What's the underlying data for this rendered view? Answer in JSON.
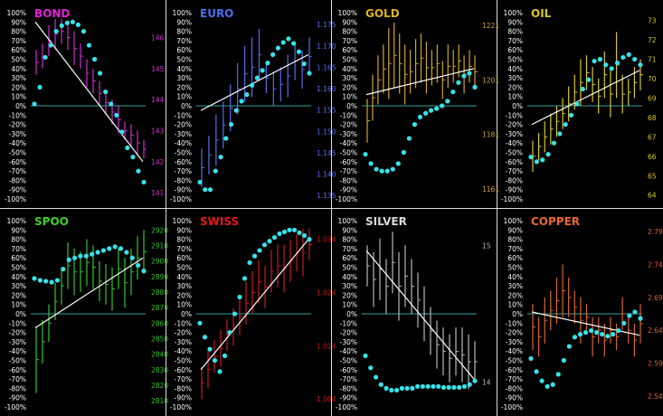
{
  "colors": {
    "background": "#000000",
    "zero_line": "#2aa3a3",
    "trend_line": "#ffffff",
    "markers": "#36e3ea",
    "left_axis_text": "#ffffff"
  },
  "chart_data": [
    {
      "type": "line",
      "title": "BOND",
      "title_color": "#e21fd6",
      "bar_color": "#d12bd0",
      "left_axis": {
        "ticks": [
          "100%",
          "90%",
          "80%",
          "70%",
          "60%",
          "50%",
          "40%",
          "30%",
          "20%",
          "10%",
          "0%",
          "-10%",
          "-20%",
          "-30%",
          "-40%",
          "-50%",
          "-60%",
          "-70%",
          "-80%",
          "-90%",
          "-100%"
        ],
        "ylim": [
          -100,
          100
        ]
      },
      "right_axis": {
        "ticks": [
          "146",
          "145",
          "144",
          "143",
          "142",
          "141"
        ],
        "ylim": [
          140.8,
          146.8
        ]
      },
      "bars": [
        [
          144.8,
          145.6
        ],
        [
          145.0,
          145.8
        ],
        [
          145.4,
          146.4
        ],
        [
          145.6,
          146.6
        ],
        [
          145.8,
          146.6
        ],
        [
          145.6,
          146.4
        ],
        [
          145.1,
          146.2
        ],
        [
          145.0,
          145.8
        ],
        [
          144.4,
          145.3
        ],
        [
          144.2,
          145.0
        ],
        [
          143.8,
          144.6
        ],
        [
          143.5,
          144.3
        ],
        [
          143.2,
          144.0
        ],
        [
          142.9,
          143.8
        ],
        [
          142.7,
          143.3
        ],
        [
          142.5,
          143.2
        ],
        [
          142.2,
          143.0
        ],
        [
          142.1,
          142.7
        ]
      ],
      "markers": [
        2,
        20,
        52,
        65,
        80,
        86,
        89,
        90,
        87,
        80,
        65,
        50,
        35,
        15,
        2,
        -10,
        -28,
        -45,
        -55,
        -70,
        -82
      ],
      "trend": [
        90,
        -60
      ]
    },
    {
      "type": "line",
      "title": "EURO",
      "title_color": "#4a6cf0",
      "bar_color": "#5b6ce8",
      "left_axis": {
        "ticks": [
          "100%",
          "90%",
          "80%",
          "70%",
          "60%",
          "50%",
          "40%",
          "30%",
          "20%",
          "10%",
          "0%",
          "-10%",
          "-20%",
          "-30%",
          "-40%",
          "-50%",
          "-60%",
          "-70%",
          "-80%",
          "-90%",
          "-100%"
        ],
        "ylim": [
          -100,
          100
        ]
      },
      "right_axis": {
        "ticks": [
          "1.175",
          "1.170",
          "1.165",
          "1.160",
          "1.155",
          "1.150",
          "1.145",
          "1.140",
          "1.135"
        ],
        "ylim": [
          1.1342,
          1.1778
        ]
      },
      "bars": [
        [
          1.137,
          1.146
        ],
        [
          1.14,
          1.149
        ],
        [
          1.142,
          1.154
        ],
        [
          1.146,
          1.157
        ],
        [
          1.15,
          1.161
        ],
        [
          1.154,
          1.166
        ],
        [
          1.157,
          1.17
        ],
        [
          1.158,
          1.172
        ],
        [
          1.162,
          1.174
        ],
        [
          1.159,
          1.166
        ],
        [
          1.156,
          1.164
        ],
        [
          1.157,
          1.165
        ],
        [
          1.158,
          1.168
        ],
        [
          1.162,
          1.171
        ],
        [
          1.16,
          1.169
        ],
        [
          1.163,
          1.172
        ]
      ],
      "markers": [
        -82,
        -90,
        -90,
        -70,
        -55,
        -35,
        -20,
        -5,
        5,
        12,
        22,
        30,
        38,
        46,
        55,
        62,
        68,
        72,
        67,
        58,
        45,
        35
      ],
      "trend": [
        -5,
        55
      ]
    },
    {
      "type": "line",
      "title": "GOLD",
      "title_color": "#e0b020",
      "bar_color": "#d3a42a",
      "left_axis": {
        "ticks": [
          "100%",
          "90%",
          "80%",
          "70%",
          "60%",
          "50%",
          "40%",
          "30%",
          "20%",
          "10%",
          "0%",
          "-10%",
          "-20%",
          "-30%",
          "-40%",
          "-50%",
          "-60%",
          "-70%",
          "-80%",
          "-90%",
          "-100%"
        ],
        "ylim": [
          -100,
          100
        ]
      },
      "right_axis": {
        "ticks": [
          "1221",
          "1201",
          "1181",
          "1161"
        ],
        "ylim": [
          1157.3,
          1225.7
        ]
      },
      "bars": [
        [
          1178,
          1194
        ],
        [
          1186,
          1203
        ],
        [
          1192,
          1210
        ],
        [
          1196,
          1214
        ],
        [
          1194,
          1220
        ],
        [
          1198,
          1222
        ],
        [
          1196,
          1218
        ],
        [
          1192,
          1214
        ],
        [
          1196,
          1212
        ],
        [
          1198,
          1216
        ],
        [
          1200,
          1218
        ],
        [
          1196,
          1215
        ],
        [
          1199,
          1212
        ],
        [
          1200,
          1214
        ],
        [
          1194,
          1208
        ],
        [
          1198,
          1214
        ],
        [
          1200,
          1212
        ],
        [
          1202,
          1214
        ],
        [
          1196,
          1210
        ],
        [
          1200,
          1212
        ],
        [
          1198,
          1210
        ]
      ],
      "markers": [
        -52,
        -62,
        -68,
        -70,
        -70,
        -68,
        -62,
        -50,
        -35,
        -20,
        -12,
        -8,
        -5,
        -3,
        0,
        5,
        15,
        25,
        32,
        35,
        20
      ],
      "trend": [
        12,
        40
      ]
    },
    {
      "type": "line",
      "title": "OIL",
      "title_color": "#ddc624",
      "bar_color": "#d9c72b",
      "left_axis": {
        "ticks": [
          "100%",
          "90%",
          "80%",
          "70%",
          "60%",
          "50%",
          "40%",
          "30%",
          "20%",
          "10%",
          "0%",
          "-10%",
          "-20%",
          "-30%",
          "-40%",
          "-50%",
          "-60%",
          "-70%",
          "-80%",
          "-90%",
          "-100%"
        ],
        "ylim": [
          -100,
          100
        ]
      },
      "right_axis": {
        "ticks": [
          "73",
          "72",
          "71",
          "70",
          "69",
          "68",
          "67",
          "66",
          "65",
          "64"
        ],
        "ylim": [
          63.8,
          73.4
        ]
      },
      "bars": [
        [
          65.2,
          66.8
        ],
        [
          65.8,
          67.2
        ],
        [
          66.2,
          67.8
        ],
        [
          66.6,
          68.2
        ],
        [
          67.0,
          68.6
        ],
        [
          67.4,
          69.0
        ],
        [
          67.8,
          69.6
        ],
        [
          68.4,
          70.2
        ],
        [
          68.6,
          71.0
        ],
        [
          69.4,
          71.2
        ],
        [
          68.8,
          70.6
        ],
        [
          68.2,
          70.0
        ],
        [
          69.0,
          71.4
        ],
        [
          68.0,
          70.4
        ],
        [
          69.0,
          72.4
        ],
        [
          68.2,
          70.2
        ],
        [
          68.6,
          70.0
        ],
        [
          69.0,
          70.6
        ],
        [
          69.4,
          71.0
        ]
      ],
      "markers": [
        -55,
        -60,
        -58,
        -52,
        -40,
        -30,
        -20,
        -10,
        2,
        18,
        28,
        48,
        50,
        44,
        40,
        46,
        52,
        55,
        50,
        44
      ],
      "trend": [
        -20,
        38
      ]
    },
    {
      "type": "line",
      "title": "SPOO",
      "title_color": "#3ed22a",
      "bar_color": "#34c52c",
      "left_axis": {
        "ticks": [
          "100%",
          "90%",
          "80%",
          "70%",
          "60%",
          "50%",
          "40%",
          "30%",
          "20%",
          "10%",
          "0%",
          "-10%",
          "-20%",
          "-30%",
          "-40%",
          "-50%",
          "-60%",
          "-70%",
          "-80%",
          "-90%",
          "-100%"
        ],
        "ylim": [
          -100,
          100
        ]
      },
      "right_axis": {
        "ticks": [
          "2920",
          "2910",
          "2900",
          "2890",
          "2880",
          "2870",
          "2860",
          "2850",
          "2840",
          "2830",
          "2820",
          "2810"
        ],
        "ylim": [
          2806,
          2926
        ]
      },
      "bars": [
        [
          2815,
          2858
        ],
        [
          2834,
          2862
        ],
        [
          2848,
          2872
        ],
        [
          2862,
          2886
        ],
        [
          2872,
          2896
        ],
        [
          2882,
          2912
        ],
        [
          2878,
          2908
        ],
        [
          2880,
          2906
        ],
        [
          2884,
          2914
        ],
        [
          2882,
          2910
        ],
        [
          2874,
          2900
        ],
        [
          2872,
          2898
        ],
        [
          2868,
          2896
        ],
        [
          2882,
          2908
        ],
        [
          2870,
          2902
        ],
        [
          2878,
          2908
        ],
        [
          2888,
          2916
        ],
        [
          2892,
          2920
        ]
      ],
      "markers": [
        38,
        36,
        35,
        34,
        36,
        48,
        58,
        60,
        62,
        62,
        64,
        66,
        68,
        70,
        72,
        70,
        66,
        60,
        52,
        46
      ],
      "trend": [
        -15,
        60
      ]
    },
    {
      "type": "line",
      "title": "SWISS",
      "title_color": "#e81818",
      "bar_color": "#c91a1a",
      "left_axis": {
        "ticks": [
          "100%",
          "90%",
          "80%",
          "70%",
          "60%",
          "50%",
          "40%",
          "30%",
          "20%",
          "10%",
          "0%",
          "-10%",
          "-20%",
          "-30%",
          "-40%",
          "-50%",
          "-60%",
          "-70%",
          "-80%",
          "-90%",
          "-100%"
        ],
        "ylim": [
          -100,
          100
        ]
      },
      "right_axis": {
        "ticks": [
          "1.034",
          "1.024",
          "1.014",
          "1.004"
        ],
        "ylim": [
          1.0025,
          1.0375
        ]
      },
      "bars": [
        [
          1.004,
          1.01
        ],
        [
          1.006,
          1.013
        ],
        [
          1.009,
          1.015
        ],
        [
          1.01,
          1.017
        ],
        [
          1.013,
          1.019
        ],
        [
          1.014,
          1.021
        ],
        [
          1.016,
          1.023
        ],
        [
          1.018,
          1.026
        ],
        [
          1.02,
          1.028
        ],
        [
          1.022,
          1.03
        ],
        [
          1.021,
          1.029
        ],
        [
          1.024,
          1.032
        ],
        [
          1.025,
          1.033
        ],
        [
          1.024,
          1.033
        ],
        [
          1.026,
          1.034
        ],
        [
          1.028,
          1.035
        ],
        [
          1.027,
          1.036
        ],
        [
          1.03,
          1.036
        ]
      ],
      "markers": [
        -10,
        -25,
        -38,
        -50,
        -62,
        -45,
        -20,
        0,
        18,
        38,
        55,
        62,
        68,
        74,
        78,
        82,
        86,
        88,
        90,
        90,
        87,
        84,
        80
      ],
      "trend": [
        -60,
        80
      ]
    },
    {
      "type": "line",
      "title": "SILVER",
      "title_color": "#d8d8d8",
      "bar_color": "#b9b9b9",
      "left_axis": {
        "ticks": [
          "100%",
          "90%",
          "80%",
          "70%",
          "60%",
          "50%",
          "40%",
          "30%",
          "20%",
          "10%",
          "0%",
          "-10%",
          "-20%",
          "-30%",
          "-40%",
          "-50%",
          "-60%",
          "-70%",
          "-80%",
          "-90%",
          "-100%"
        ],
        "ylim": [
          -100,
          100
        ]
      },
      "right_axis": {
        "ticks": [
          "15",
          "14"
        ],
        "ylim": [
          13.82,
          15.18
        ]
      },
      "bars": [
        [
          14.7,
          15.0
        ],
        [
          14.55,
          14.95
        ],
        [
          14.6,
          15.05
        ],
        [
          14.5,
          14.9
        ],
        [
          14.65,
          15.1
        ],
        [
          14.45,
          14.95
        ],
        [
          14.55,
          15.0
        ],
        [
          14.5,
          14.9
        ],
        [
          14.4,
          14.8
        ],
        [
          14.3,
          14.7
        ],
        [
          14.2,
          14.55
        ],
        [
          14.1,
          14.45
        ],
        [
          14.05,
          14.4
        ],
        [
          14.0,
          14.35
        ],
        [
          14.05,
          14.4
        ],
        [
          14.0,
          14.4
        ],
        [
          13.95,
          14.35
        ],
        [
          14.0,
          14.3
        ]
      ],
      "markers": [
        -45,
        -58,
        -68,
        -76,
        -80,
        -82,
        -82,
        -80,
        -80,
        -80,
        -78,
        -78,
        -78,
        -78,
        -78,
        -79,
        -79,
        -79,
        -79,
        -78,
        -76,
        -72
      ],
      "trend": [
        68,
        -70
      ]
    },
    {
      "type": "line",
      "title": "COPPER",
      "title_color": "#e8692a",
      "bar_color": "#d9652c",
      "left_axis": {
        "ticks": [
          "100%",
          "90%",
          "80%",
          "70%",
          "60%",
          "50%",
          "40%",
          "30%",
          "20%",
          "10%",
          "0%",
          "-10%",
          "-20%",
          "-30%",
          "-40%",
          "-50%",
          "-60%",
          "-70%",
          "-80%",
          "-90%",
          "-100%"
        ],
        "ylim": [
          -100,
          100
        ]
      },
      "right_axis": {
        "ticks": [
          "2.79",
          "2.74",
          "2.69",
          "2.64",
          "2.59",
          "2.54"
        ],
        "ylim": [
          2.5235,
          2.8065
        ]
      },
      "bars": [
        [
          2.61,
          2.68
        ],
        [
          2.6,
          2.66
        ],
        [
          2.62,
          2.69
        ],
        [
          2.64,
          2.7
        ],
        [
          2.65,
          2.72
        ],
        [
          2.66,
          2.74
        ],
        [
          2.66,
          2.72
        ],
        [
          2.65,
          2.7
        ],
        [
          2.62,
          2.69
        ],
        [
          2.64,
          2.68
        ],
        [
          2.6,
          2.66
        ],
        [
          2.62,
          2.66
        ],
        [
          2.6,
          2.65
        ],
        [
          2.62,
          2.66
        ],
        [
          2.61,
          2.65
        ],
        [
          2.64,
          2.69
        ],
        [
          2.62,
          2.66
        ],
        [
          2.6,
          2.65
        ],
        [
          2.62,
          2.68
        ]
      ],
      "markers": [
        -48,
        -62,
        -72,
        -78,
        -76,
        -65,
        -50,
        -35,
        -25,
        -22,
        -20,
        -18,
        -20,
        -22,
        -24,
        -22,
        -18,
        -10,
        -2,
        2,
        -5
      ],
      "trend": [
        2,
        -23
      ]
    }
  ]
}
